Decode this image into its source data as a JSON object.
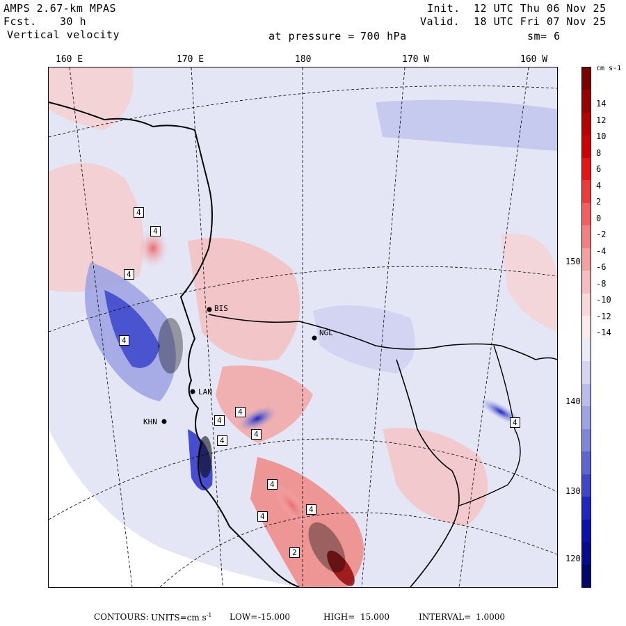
{
  "header": {
    "model": "AMPS 2.67-km MPAS",
    "fcst_label": "Fcst.",
    "fcst_value": "30 h",
    "field": "Vertical velocity",
    "init_label": "Init.",
    "init_value": "12 UTC Thu 06 Nov 25",
    "valid_label": "Valid.",
    "valid_value": "18 UTC Fri 07 Nov 25",
    "pressure_label": "at pressure =",
    "pressure_value": "700 hPa",
    "smoothing": "sm= 6"
  },
  "longitude_labels": [
    "160 E",
    "170 E",
    "180",
    "170 W",
    "160 W"
  ],
  "latitude_labels": [
    "150 W",
    "140 W",
    "130 W",
    "120 W"
  ],
  "stations": [
    "BIS",
    "NGL",
    "LAN",
    "KHN"
  ],
  "contour_box_labels": [
    "4",
    "4",
    "4",
    "4",
    "4",
    "4",
    "4",
    "4",
    "4",
    "4",
    "4",
    "4",
    "2"
  ],
  "colorbar": {
    "unit": "cm s-1",
    "tick_labels": [
      "14",
      "12",
      "10",
      "8",
      "6",
      "4",
      "2",
      "0",
      "-2",
      "-4",
      "-6",
      "-8",
      "-10",
      "-12",
      "-14"
    ],
    "colors": [
      "#7a0000",
      "#9b0000",
      "#b80000",
      "#d10000",
      "#e81414",
      "#f03a3a",
      "#f45e5e",
      "#f58080",
      "#f5a0a0",
      "#f5bdbd",
      "#f8d8d8",
      "#fbeaea",
      "#ebebf7",
      "#d3d5f1",
      "#b9bdeb",
      "#9da3e4",
      "#7f86dc",
      "#5f66d3",
      "#3e47cc",
      "#1e27c4",
      "#0b12b0",
      "#060b90",
      "#03066d"
    ]
  },
  "footer": {
    "contours_label": "CONTOURS:",
    "units_label": "UNITS=cm s",
    "units_exp": "-1",
    "low_label": "LOW=",
    "low_value": "-15.000",
    "high_label": "HIGH=",
    "high_value": "15.000",
    "interval_label": "INTERVAL=",
    "interval_value": "1.0000"
  }
}
